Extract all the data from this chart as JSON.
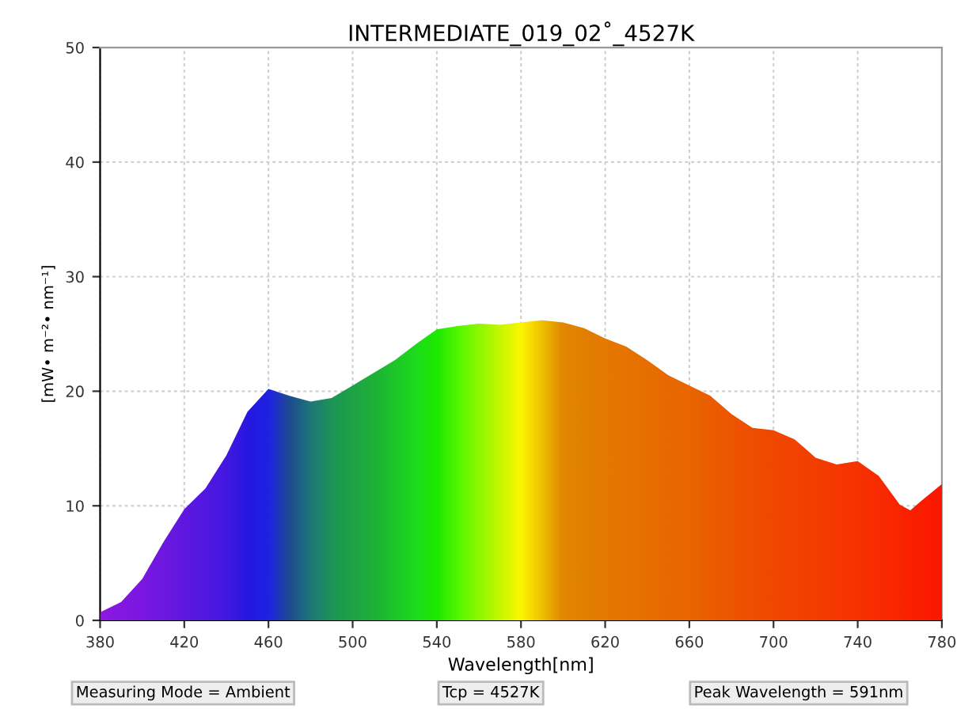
{
  "chart_data": {
    "type": "area",
    "title": "INTERMEDIATE_019_02˚_4527K",
    "xlabel": "Wavelength[nm]",
    "ylabel": "[mW• m⁻²• nm⁻¹]",
    "x": [
      380,
      390,
      400,
      410,
      420,
      430,
      440,
      450,
      460,
      470,
      480,
      490,
      500,
      510,
      520,
      530,
      540,
      550,
      560,
      570,
      580,
      590,
      600,
      610,
      620,
      630,
      640,
      650,
      660,
      670,
      680,
      690,
      700,
      710,
      720,
      730,
      740,
      750,
      760,
      765,
      770,
      780
    ],
    "values": [
      0.7,
      1.6,
      3.6,
      6.8,
      9.7,
      11.5,
      14.4,
      18.2,
      20.2,
      19.6,
      19.1,
      19.4,
      20.5,
      21.6,
      22.7,
      24.1,
      25.4,
      25.7,
      25.9,
      25.8,
      26.0,
      26.2,
      26.0,
      25.5,
      24.6,
      23.9,
      22.7,
      21.4,
      20.5,
      19.6,
      18.0,
      16.8,
      16.6,
      15.8,
      14.2,
      13.6,
      13.9,
      12.6,
      10.1,
      9.6,
      10.4,
      11.9
    ],
    "colors": [
      "#8000ff",
      "#7400ff",
      "#6a00ff",
      "#5a00ff",
      "#4a00ff",
      "#3a00ff",
      "#2a00ff",
      "#0a00ff",
      "#0010ff",
      "#0040a0",
      "#00708a",
      "#009060",
      "#00a050",
      "#00b040",
      "#00c830",
      "#00e020",
      "#00f000",
      "#40ff00",
      "#80ff00",
      "#c0ff00",
      "#ffff00",
      "#f0c000",
      "#e08000",
      "#e07800",
      "#e47000",
      "#e46a00",
      "#e66400",
      "#e65e00",
      "#e85a00",
      "#ea5000",
      "#ec4800",
      "#ee4000",
      "#f03800",
      "#f23200",
      "#f42c00",
      "#f62600",
      "#f82000",
      "#fa1800",
      "#fc1000",
      "#fc0c00",
      "#fd0800",
      "#ff0000"
    ],
    "xlim": [
      380,
      780
    ],
    "ylim": [
      0,
      50
    ],
    "xticks": [
      380,
      420,
      460,
      500,
      540,
      580,
      620,
      660,
      700,
      740,
      780
    ],
    "yticks": [
      0,
      10,
      20,
      30,
      40,
      50
    ],
    "grid": true,
    "annotations": [
      "Measuring Mode = Ambient",
      "Tcp = 4527K",
      "Peak Wavelength = 591nm"
    ]
  }
}
